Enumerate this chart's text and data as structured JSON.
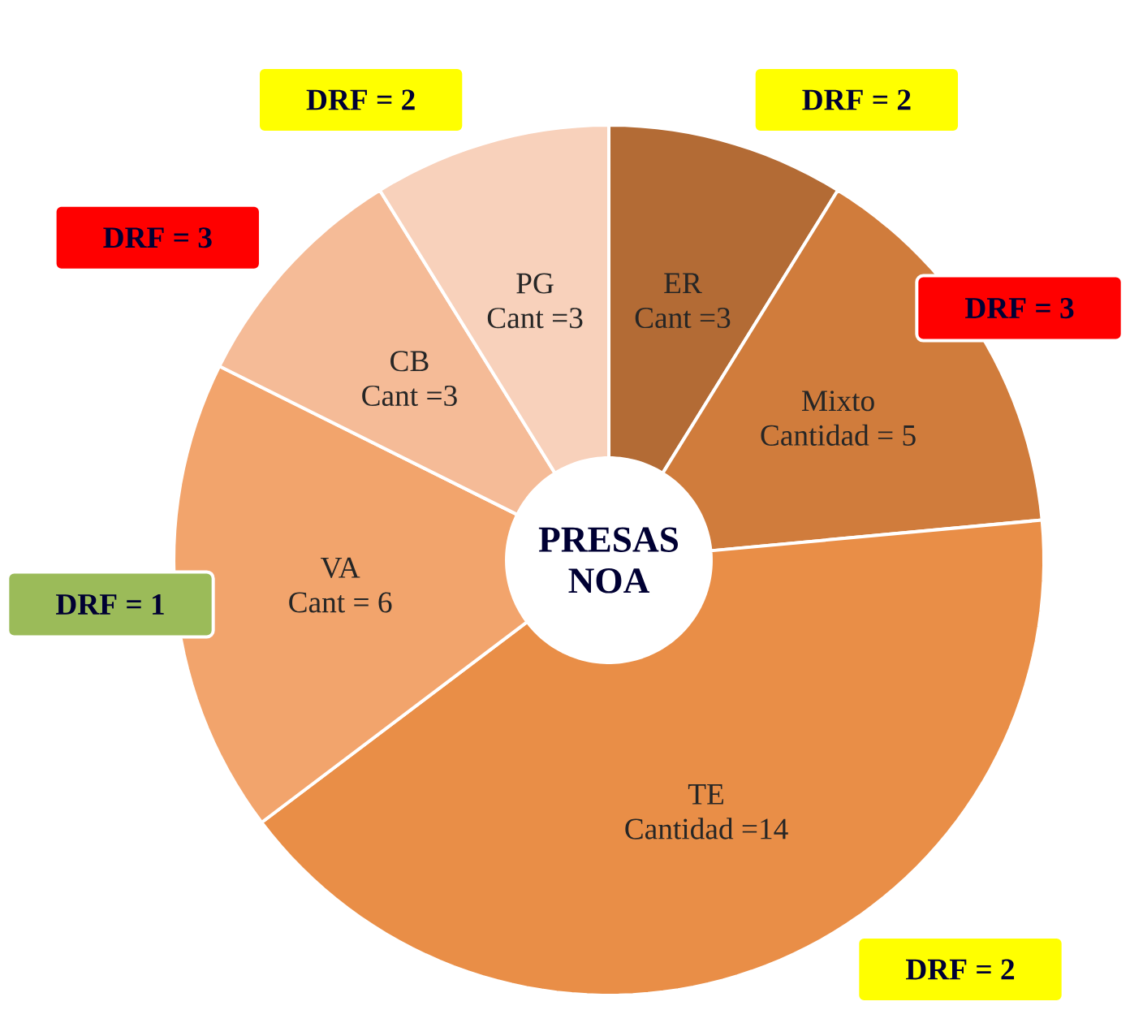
{
  "chart_data": {
    "type": "donut",
    "title": "PRESAS NOA",
    "categories": [
      "ER",
      "Mixto",
      "TE",
      "VA",
      "CB",
      "PG"
    ],
    "values": [
      3,
      5,
      14,
      6,
      3,
      3
    ],
    "value_labels": [
      "Cant =3",
      "Cantidad = 5",
      "Cantidad =14",
      "Cant = 6",
      "Cant =3",
      "Cant =3"
    ],
    "colors": [
      "#b36b35",
      "#d07c3c",
      "#e98e47",
      "#f2a46c",
      "#f5bb97",
      "#f8d1bb"
    ],
    "annotations": [
      {
        "text": "DRF = 2",
        "x": "ER"
      },
      {
        "text": "DRF = 3",
        "x": "Mixto"
      },
      {
        "text": "DRF = 2",
        "x": "TE"
      },
      {
        "text": "DRF = 1",
        "x": "VA"
      },
      {
        "text": "DRF = 3",
        "x": "CB"
      },
      {
        "text": "DRF = 2",
        "x": "PG"
      }
    ]
  }
}
